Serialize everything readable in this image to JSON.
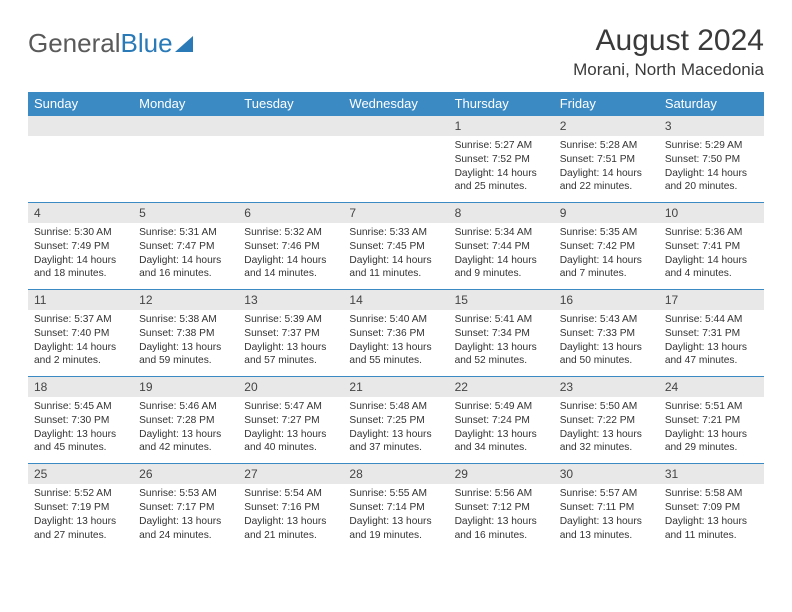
{
  "logo": {
    "part1": "General",
    "part2": "Blue"
  },
  "title": "August 2024",
  "location": "Morani, North Macedonia",
  "colors": {
    "header_bg": "#3b8ac4",
    "header_fg": "#ffffff",
    "daynum_bg": "#e8e8e8",
    "row_border": "#3b8ac4",
    "text": "#333333",
    "logo_gray": "#5a5a5a",
    "logo_blue": "#2a7ab8"
  },
  "typography": {
    "title_fontsize": 30,
    "location_fontsize": 17,
    "weekday_fontsize": 13,
    "daynum_fontsize": 12,
    "detail_fontsize": 10.2
  },
  "weekdays": [
    "Sunday",
    "Monday",
    "Tuesday",
    "Wednesday",
    "Thursday",
    "Friday",
    "Saturday"
  ],
  "weeks": [
    [
      null,
      null,
      null,
      null,
      {
        "n": "1",
        "sr": "5:27 AM",
        "ss": "7:52 PM",
        "dl": "14 hours and 25 minutes."
      },
      {
        "n": "2",
        "sr": "5:28 AM",
        "ss": "7:51 PM",
        "dl": "14 hours and 22 minutes."
      },
      {
        "n": "3",
        "sr": "5:29 AM",
        "ss": "7:50 PM",
        "dl": "14 hours and 20 minutes."
      }
    ],
    [
      {
        "n": "4",
        "sr": "5:30 AM",
        "ss": "7:49 PM",
        "dl": "14 hours and 18 minutes."
      },
      {
        "n": "5",
        "sr": "5:31 AM",
        "ss": "7:47 PM",
        "dl": "14 hours and 16 minutes."
      },
      {
        "n": "6",
        "sr": "5:32 AM",
        "ss": "7:46 PM",
        "dl": "14 hours and 14 minutes."
      },
      {
        "n": "7",
        "sr": "5:33 AM",
        "ss": "7:45 PM",
        "dl": "14 hours and 11 minutes."
      },
      {
        "n": "8",
        "sr": "5:34 AM",
        "ss": "7:44 PM",
        "dl": "14 hours and 9 minutes."
      },
      {
        "n": "9",
        "sr": "5:35 AM",
        "ss": "7:42 PM",
        "dl": "14 hours and 7 minutes."
      },
      {
        "n": "10",
        "sr": "5:36 AM",
        "ss": "7:41 PM",
        "dl": "14 hours and 4 minutes."
      }
    ],
    [
      {
        "n": "11",
        "sr": "5:37 AM",
        "ss": "7:40 PM",
        "dl": "14 hours and 2 minutes."
      },
      {
        "n": "12",
        "sr": "5:38 AM",
        "ss": "7:38 PM",
        "dl": "13 hours and 59 minutes."
      },
      {
        "n": "13",
        "sr": "5:39 AM",
        "ss": "7:37 PM",
        "dl": "13 hours and 57 minutes."
      },
      {
        "n": "14",
        "sr": "5:40 AM",
        "ss": "7:36 PM",
        "dl": "13 hours and 55 minutes."
      },
      {
        "n": "15",
        "sr": "5:41 AM",
        "ss": "7:34 PM",
        "dl": "13 hours and 52 minutes."
      },
      {
        "n": "16",
        "sr": "5:43 AM",
        "ss": "7:33 PM",
        "dl": "13 hours and 50 minutes."
      },
      {
        "n": "17",
        "sr": "5:44 AM",
        "ss": "7:31 PM",
        "dl": "13 hours and 47 minutes."
      }
    ],
    [
      {
        "n": "18",
        "sr": "5:45 AM",
        "ss": "7:30 PM",
        "dl": "13 hours and 45 minutes."
      },
      {
        "n": "19",
        "sr": "5:46 AM",
        "ss": "7:28 PM",
        "dl": "13 hours and 42 minutes."
      },
      {
        "n": "20",
        "sr": "5:47 AM",
        "ss": "7:27 PM",
        "dl": "13 hours and 40 minutes."
      },
      {
        "n": "21",
        "sr": "5:48 AM",
        "ss": "7:25 PM",
        "dl": "13 hours and 37 minutes."
      },
      {
        "n": "22",
        "sr": "5:49 AM",
        "ss": "7:24 PM",
        "dl": "13 hours and 34 minutes."
      },
      {
        "n": "23",
        "sr": "5:50 AM",
        "ss": "7:22 PM",
        "dl": "13 hours and 32 minutes."
      },
      {
        "n": "24",
        "sr": "5:51 AM",
        "ss": "7:21 PM",
        "dl": "13 hours and 29 minutes."
      }
    ],
    [
      {
        "n": "25",
        "sr": "5:52 AM",
        "ss": "7:19 PM",
        "dl": "13 hours and 27 minutes."
      },
      {
        "n": "26",
        "sr": "5:53 AM",
        "ss": "7:17 PM",
        "dl": "13 hours and 24 minutes."
      },
      {
        "n": "27",
        "sr": "5:54 AM",
        "ss": "7:16 PM",
        "dl": "13 hours and 21 minutes."
      },
      {
        "n": "28",
        "sr": "5:55 AM",
        "ss": "7:14 PM",
        "dl": "13 hours and 19 minutes."
      },
      {
        "n": "29",
        "sr": "5:56 AM",
        "ss": "7:12 PM",
        "dl": "13 hours and 16 minutes."
      },
      {
        "n": "30",
        "sr": "5:57 AM",
        "ss": "7:11 PM",
        "dl": "13 hours and 13 minutes."
      },
      {
        "n": "31",
        "sr": "5:58 AM",
        "ss": "7:09 PM",
        "dl": "13 hours and 11 minutes."
      }
    ]
  ],
  "labels": {
    "sunrise": "Sunrise:",
    "sunset": "Sunset:",
    "daylight": "Daylight:"
  }
}
